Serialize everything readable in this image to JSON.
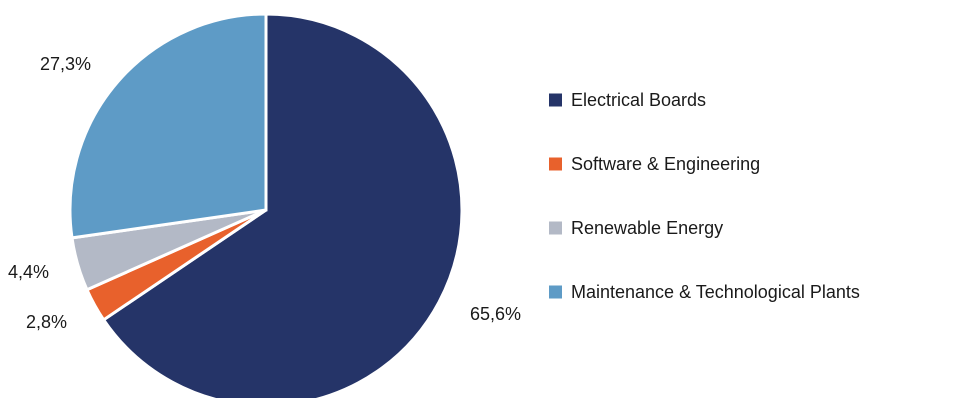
{
  "chart_data": {
    "type": "pie",
    "categories": [
      "Electrical Boards",
      "Software & Engineering",
      "Renewable Energy",
      "Maintenance & Technological Plants"
    ],
    "values": [
      65.6,
      2.8,
      4.4,
      27.3
    ],
    "data_labels": [
      "65,6%",
      "2,8%",
      "4,4%",
      "27,3%"
    ],
    "colors": [
      "#253468",
      "#e8612c",
      "#b3b9c6",
      "#5e9bc6"
    ],
    "legend_position": "right",
    "start_angle": "12 o'clock",
    "direction": "clockwise"
  }
}
